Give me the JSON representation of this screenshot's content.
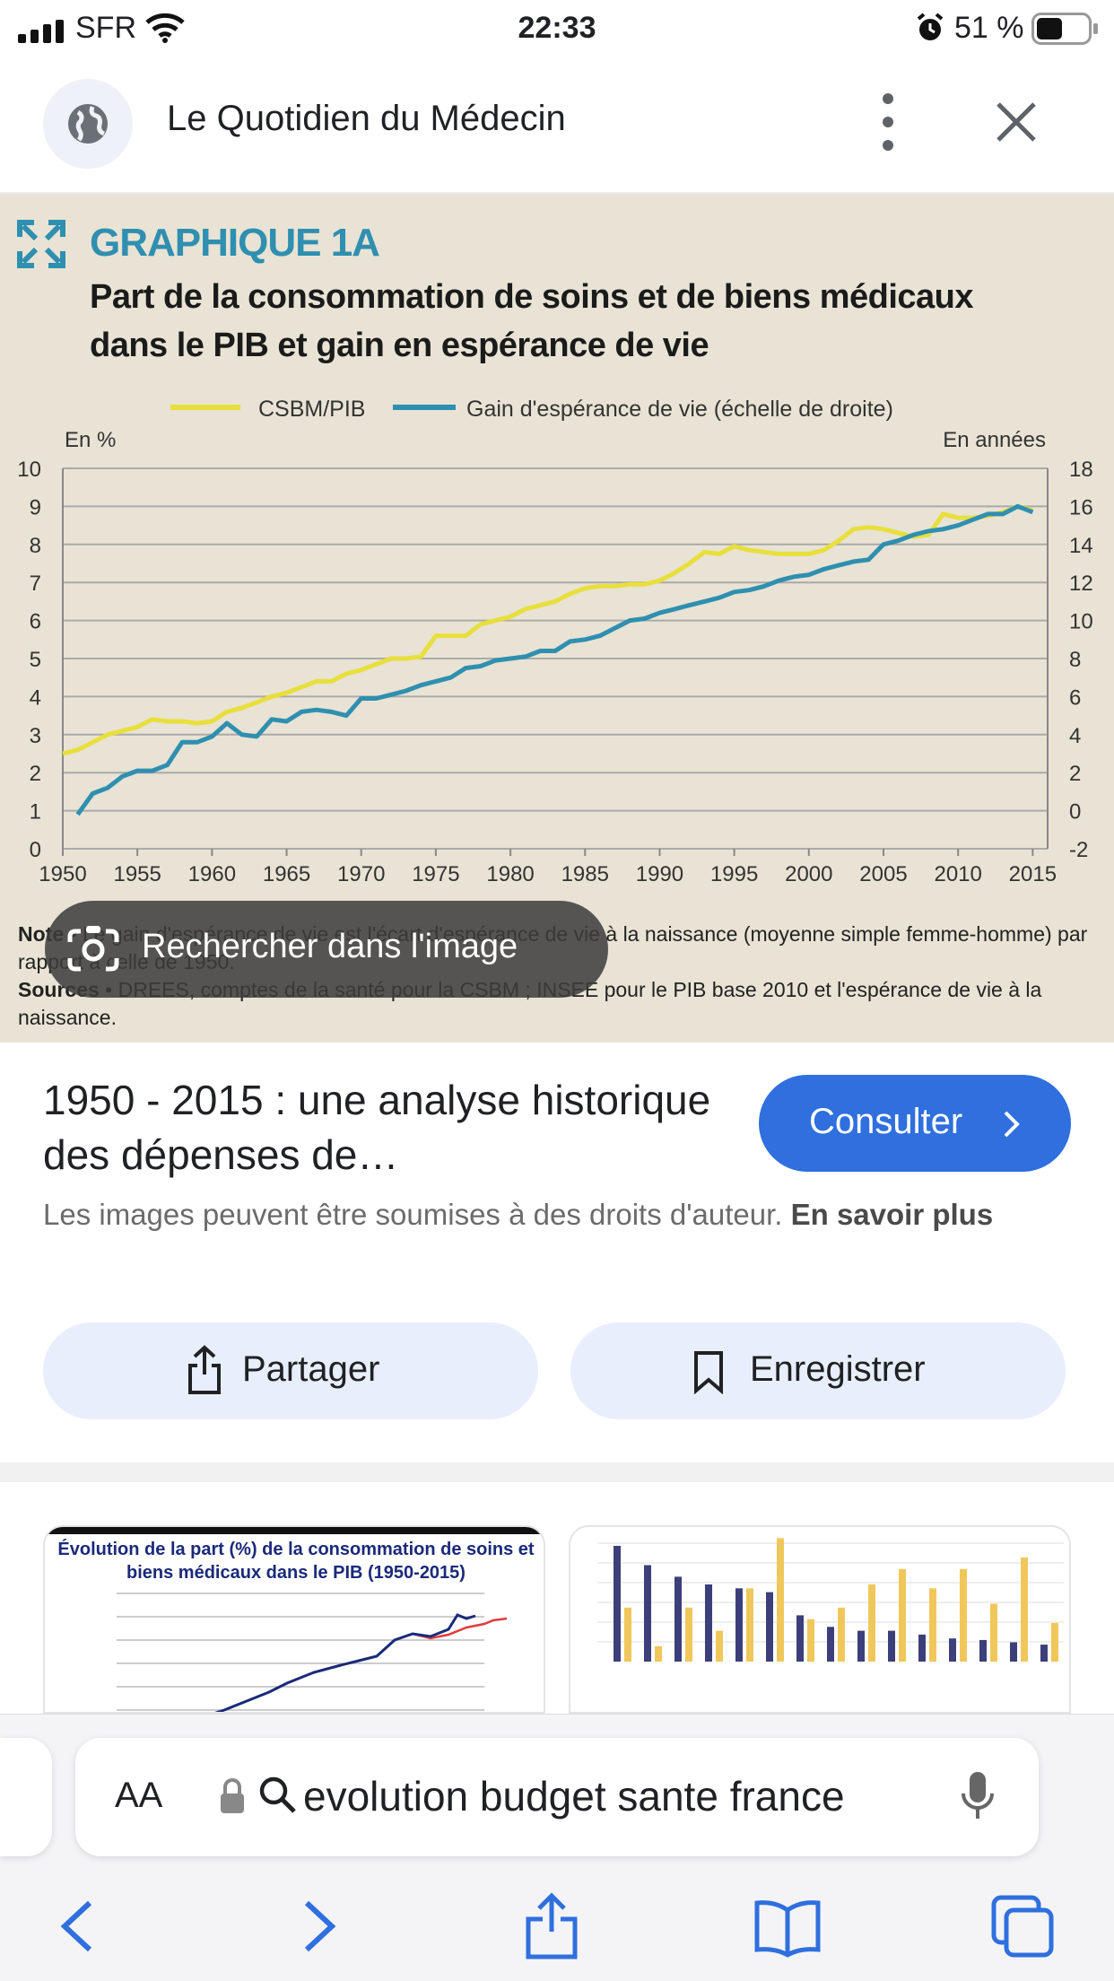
{
  "status_bar": {
    "carrier": "SFR",
    "time": "22:33",
    "battery": "51 %",
    "battery_level": 0.51
  },
  "header": {
    "site_name": "Le Quotidien du Médecin",
    "icons": [
      "globe-icon",
      "more-vert-icon",
      "close-icon"
    ]
  },
  "image": {
    "graph_label": "GRAPHIQUE 1A",
    "graph_title": "Part de la consommation de soins et de biens médicaux dans le PIB et gain en espérance de vie",
    "note_label": "Note",
    "note_text": "• Le gain d'espérance de vie est l'écart d'espérance de vie à la naissance (moyenne  simple femme-homme) par rapport à celle de 1950.",
    "sources_label": "Sources",
    "sources_text": "• DREES, comptes de la santé pour la CSBM ; INSEE pour le PIB base 2010 et l'espérance de vie à la naissance.",
    "search_chip": "Rechercher dans l'image"
  },
  "chart_data": {
    "type": "line",
    "title": "",
    "xlabel": "",
    "ylabel_left": "En %",
    "ylabel_right": "En années",
    "xlim": [
      1950,
      2016
    ],
    "ylim_left": [
      0,
      10
    ],
    "ylim_right": [
      -2,
      18
    ],
    "x_ticks": [
      "1950",
      "1955",
      "1960",
      "1965",
      "1970",
      "1975",
      "1980",
      "1985",
      "1990",
      "1995",
      "2000",
      "2005",
      "2010",
      "2015"
    ],
    "y_left_ticks": [
      "0",
      "1",
      "2",
      "3",
      "4",
      "5",
      "6",
      "7",
      "8",
      "9",
      "10"
    ],
    "y_right_ticks": [
      "-2",
      "0",
      "2",
      "4",
      "6",
      "8",
      "10",
      "12",
      "14",
      "16",
      "18"
    ],
    "legend_position": "top",
    "grid": true,
    "series": [
      {
        "name": "CSBM/PIB",
        "axis": "left",
        "color": "#e8df3c",
        "x": [
          1950,
          1951,
          1952,
          1953,
          1954,
          1955,
          1956,
          1957,
          1958,
          1959,
          1960,
          1961,
          1962,
          1963,
          1964,
          1965,
          1966,
          1967,
          1968,
          1969,
          1970,
          1971,
          1972,
          1973,
          1974,
          1975,
          1976,
          1977,
          1978,
          1979,
          1980,
          1981,
          1982,
          1983,
          1984,
          1985,
          1986,
          1987,
          1988,
          1989,
          1990,
          1991,
          1992,
          1993,
          1994,
          1995,
          1996,
          1997,
          1998,
          1999,
          2000,
          2001,
          2002,
          2003,
          2004,
          2005,
          2006,
          2007,
          2008,
          2009,
          2010,
          2011,
          2012,
          2013,
          2014,
          2015
        ],
        "values": [
          2.5,
          2.6,
          2.8,
          3.0,
          3.1,
          3.2,
          3.4,
          3.35,
          3.35,
          3.3,
          3.35,
          3.6,
          3.7,
          3.85,
          4.0,
          4.1,
          4.25,
          4.4,
          4.4,
          4.6,
          4.7,
          4.85,
          5.0,
          5.0,
          5.05,
          5.6,
          5.6,
          5.6,
          5.9,
          6.0,
          6.1,
          6.3,
          6.4,
          6.5,
          6.7,
          6.85,
          6.9,
          6.9,
          6.95,
          6.95,
          7.05,
          7.25,
          7.5,
          7.8,
          7.75,
          7.95,
          7.85,
          7.8,
          7.75,
          7.75,
          7.75,
          7.85,
          8.1,
          8.4,
          8.45,
          8.4,
          8.3,
          8.2,
          8.25,
          8.8,
          8.7,
          8.7,
          8.75,
          8.85,
          9.0,
          8.9
        ]
      },
      {
        "name": "Gain d'espérance de vie (échelle de droite)",
        "axis": "right",
        "color": "#2f8fb0",
        "x": [
          1951,
          1952,
          1953,
          1954,
          1955,
          1956,
          1957,
          1958,
          1959,
          1960,
          1961,
          1962,
          1963,
          1964,
          1965,
          1966,
          1967,
          1968,
          1969,
          1970,
          1971,
          1972,
          1973,
          1974,
          1975,
          1976,
          1977,
          1978,
          1979,
          1980,
          1981,
          1982,
          1983,
          1984,
          1985,
          1986,
          1987,
          1988,
          1989,
          1990,
          1991,
          1992,
          1993,
          1994,
          1995,
          1996,
          1997,
          1998,
          1999,
          2000,
          2001,
          2002,
          2003,
          2004,
          2005,
          2006,
          2007,
          2008,
          2009,
          2010,
          2011,
          2012,
          2013,
          2014,
          2015
        ],
        "values": [
          -0.2,
          0.9,
          1.2,
          1.8,
          2.1,
          2.1,
          2.4,
          3.6,
          3.6,
          3.9,
          4.6,
          4.0,
          3.9,
          4.8,
          4.7,
          5.2,
          5.3,
          5.2,
          5.0,
          5.9,
          5.9,
          6.1,
          6.3,
          6.6,
          6.8,
          7.0,
          7.5,
          7.6,
          7.9,
          8.0,
          8.1,
          8.4,
          8.4,
          8.9,
          9.0,
          9.2,
          9.6,
          10.0,
          10.1,
          10.4,
          10.6,
          10.8,
          11.0,
          11.2,
          11.5,
          11.6,
          11.8,
          12.1,
          12.3,
          12.4,
          12.7,
          12.9,
          13.1,
          13.2,
          14.0,
          14.2,
          14.5,
          14.7,
          14.8,
          15.0,
          15.3,
          15.6,
          15.6,
          16.0,
          15.7
        ]
      }
    ]
  },
  "info": {
    "title": "1950 - 2015 : une analyse historique des dépenses de…",
    "consult_label": "Consulter",
    "copyright_text": "Les images peuvent être soumises à des droits d'auteur.",
    "learn_more": "En savoir plus"
  },
  "actions": {
    "share_label": "Partager",
    "save_label": "Enregistrer"
  },
  "related": {
    "thumb1_title": "Évolution de la part (%) de la consommation de soins et biens médicaux dans le PIB (1950-2015)"
  },
  "browser": {
    "text_size_label": "AA",
    "query": "evolution budget sante france"
  }
}
